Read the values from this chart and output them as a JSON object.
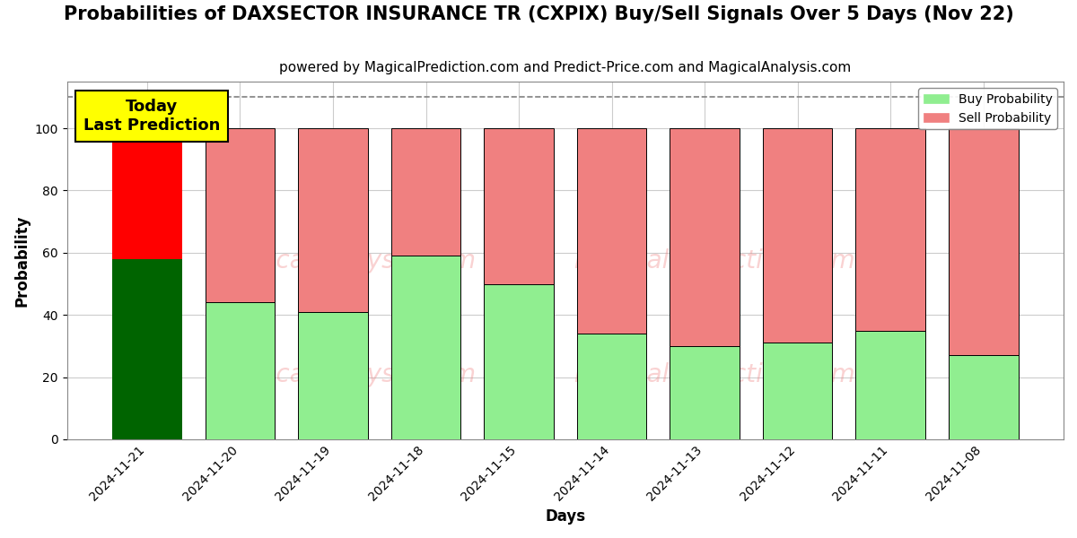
{
  "title": "Probabilities of DAXSECTOR INSURANCE TR (CXPIX) Buy/Sell Signals Over 5 Days (Nov 22)",
  "subtitle": "powered by MagicalPrediction.com and Predict-Price.com and MagicalAnalysis.com",
  "xlabel": "Days",
  "ylabel": "Probability",
  "dates": [
    "2024-11-21",
    "2024-11-20",
    "2024-11-19",
    "2024-11-18",
    "2024-11-15",
    "2024-11-14",
    "2024-11-13",
    "2024-11-12",
    "2024-11-11",
    "2024-11-08"
  ],
  "buy_values": [
    58,
    44,
    41,
    59,
    50,
    34,
    30,
    31,
    35,
    27
  ],
  "sell_values": [
    42,
    56,
    59,
    41,
    50,
    66,
    70,
    69,
    65,
    73
  ],
  "buy_color_today": "#006400",
  "sell_color_today": "#FF0000",
  "buy_color_rest": "#90EE90",
  "sell_color_rest": "#F08080",
  "bar_width": 0.75,
  "ylim": [
    0,
    115
  ],
  "yticks": [
    0,
    20,
    40,
    60,
    80,
    100
  ],
  "dashed_line_y": 110,
  "watermark_color": "#F08080",
  "watermark_alpha": 0.35,
  "annotation_text": "Today\nLast Prediction",
  "annotation_facecolor": "yellow",
  "legend_buy_label": "Buy Probability",
  "legend_sell_label": "Sell Probability",
  "title_fontsize": 15,
  "subtitle_fontsize": 11,
  "axis_label_fontsize": 12,
  "tick_fontsize": 10,
  "annotation_fontsize": 13,
  "legend_fontsize": 10,
  "bg_color": "#ffffff",
  "grid_color": "#cccccc",
  "figsize": [
    12,
    6
  ],
  "dpi": 100
}
